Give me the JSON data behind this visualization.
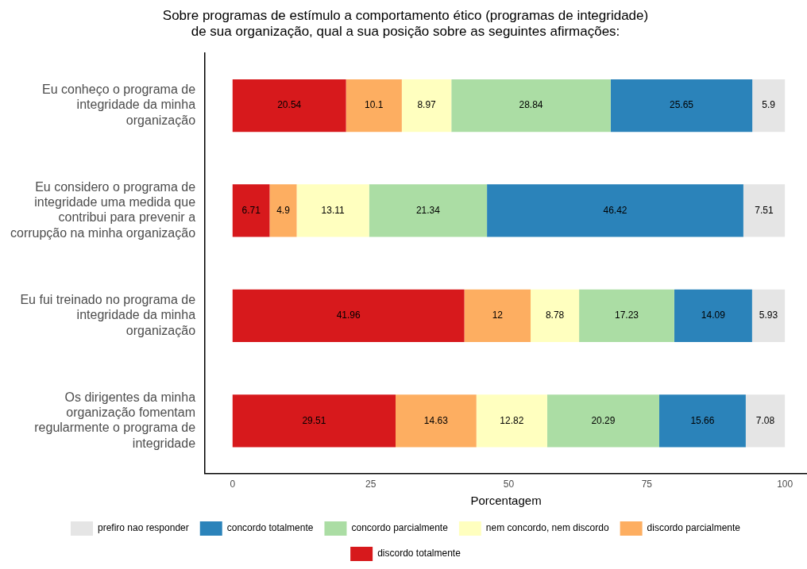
{
  "chart_data": {
    "type": "bar",
    "orientation": "horizontal",
    "stacked": true,
    "title": "Sobre programas de estímulo a comportamento ético (programas de integridade) de sua organização, qual a sua posição sobre as seguintes afirmações:",
    "xlabel": "Porcentagem",
    "categories": [
      "Eu conheço o programa de integridade da minha organização",
      "Eu considero o programa de integridade uma medida que contribui para prevenir a corrupção na minha organização",
      "Eu fui treinado no programa de integridade da minha organização",
      "Os dirigentes da minha organização fomentam regularmente o programa de integridade"
    ],
    "series": [
      {
        "name": "discordo totalmente",
        "color": "#d7191c",
        "values": [
          20.54,
          6.71,
          41.96,
          29.51
        ]
      },
      {
        "name": "discordo parcialmente",
        "color": "#fdae61",
        "values": [
          10.1,
          4.9,
          12,
          14.63
        ]
      },
      {
        "name": "nem concordo, nem discordo",
        "color": "#ffffbf",
        "values": [
          8.97,
          13.11,
          8.78,
          12.82
        ]
      },
      {
        "name": "concordo parcialmente",
        "color": "#abdda4",
        "values": [
          28.84,
          21.34,
          17.23,
          20.29
        ]
      },
      {
        "name": "concordo totalmente",
        "color": "#2b83ba",
        "values": [
          25.65,
          46.42,
          14.09,
          15.66
        ]
      },
      {
        "name": "prefiro nao responder",
        "color": "#e5e5e5",
        "values": [
          5.9,
          7.51,
          5.93,
          7.08
        ]
      }
    ],
    "xlim": [
      -5,
      104
    ],
    "xticks": [
      0,
      25,
      50,
      75,
      100
    ],
    "grid": false,
    "legend": "bottom",
    "data_labels": true
  }
}
